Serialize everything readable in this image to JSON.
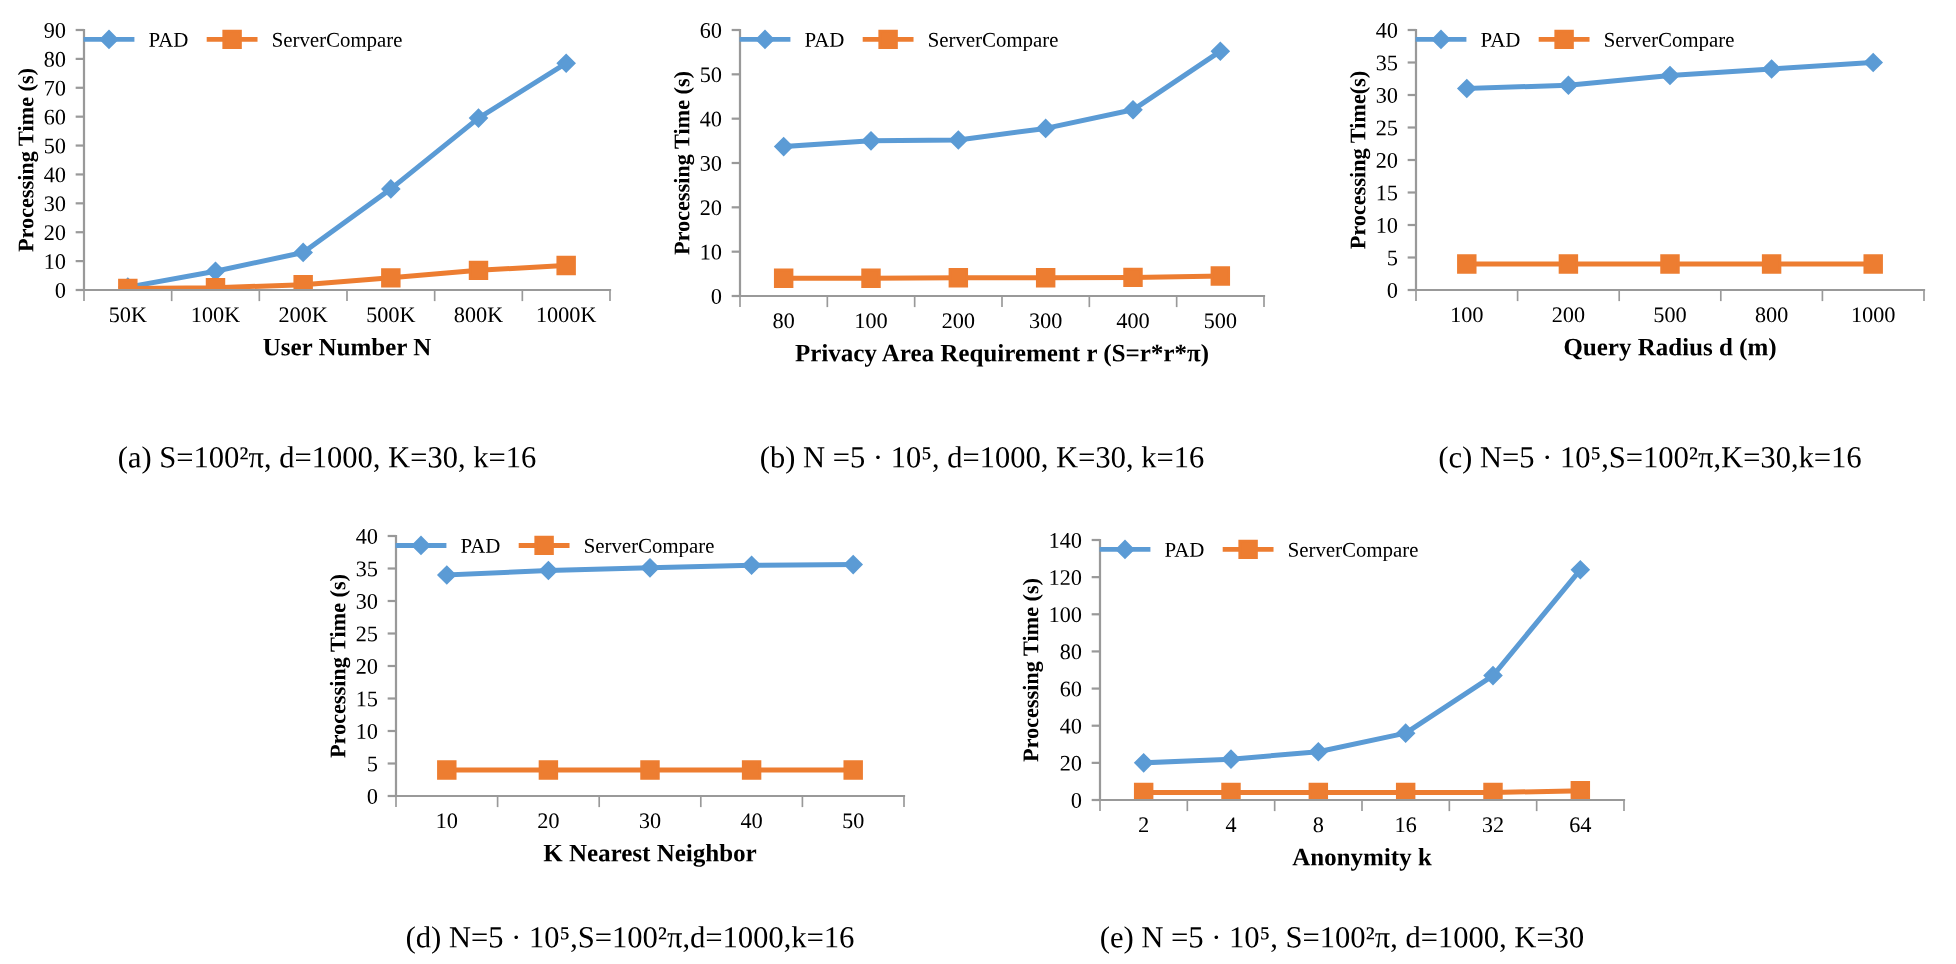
{
  "chart_data": [
    {
      "type": "line",
      "xlabel": "User Number N",
      "ylabel": "Processing Time (s)",
      "categories": [
        "50K",
        "100K",
        "200K",
        "500K",
        "800K",
        "1000K"
      ],
      "ylim": [
        0,
        90
      ],
      "yticks": [
        0,
        10,
        20,
        30,
        40,
        50,
        60,
        70,
        80,
        90
      ],
      "legend": "top left",
      "grid": false,
      "annotations": [
        "(a) S=100²π, d=1000, K=30, k=16"
      ],
      "series": [
        {
          "name": "PAD",
          "color": "#5b9bd5",
          "marker": "diamond",
          "values": [
            1,
            6.5,
            13,
            35,
            59.5,
            78.5
          ]
        },
        {
          "name": "ServerCompare",
          "color": "#ed7d31",
          "marker": "square",
          "values": [
            0.5,
            0.8,
            1.8,
            4.2,
            6.8,
            8.5
          ]
        }
      ]
    },
    {
      "type": "line",
      "xlabel": "Privacy Area Requirement r (S=r*r*π)",
      "ylabel": "Processing Time (s)",
      "categories": [
        "80",
        "100",
        "200",
        "300",
        "400",
        "500"
      ],
      "ylim": [
        0,
        60
      ],
      "yticks": [
        0,
        10,
        20,
        30,
        40,
        50,
        60
      ],
      "legend": "top left",
      "grid": false,
      "annotations": [
        "(b) N =5 · 10⁵, d=1000, K=30, k=16"
      ],
      "series": [
        {
          "name": "PAD",
          "color": "#5b9bd5",
          "marker": "diamond",
          "values": [
            33.7,
            35,
            35.2,
            37.8,
            42,
            55.2
          ]
        },
        {
          "name": "ServerCompare",
          "color": "#ed7d31",
          "marker": "square",
          "values": [
            4,
            4,
            4.1,
            4.1,
            4.2,
            4.5
          ]
        }
      ]
    },
    {
      "type": "line",
      "xlabel": "Query Radius d (m)",
      "ylabel": "Processing Time(s)",
      "categories": [
        "100",
        "200",
        "500",
        "800",
        "1000"
      ],
      "ylim": [
        0,
        40
      ],
      "yticks": [
        0,
        5,
        10,
        15,
        20,
        25,
        30,
        35,
        40
      ],
      "legend": "top left",
      "grid": false,
      "annotations": [
        "(c) N=5 · 10⁵,S=100²π,K=30,k=16"
      ],
      "series": [
        {
          "name": "PAD",
          "color": "#5b9bd5",
          "marker": "diamond",
          "values": [
            31,
            31.5,
            33,
            34,
            35
          ]
        },
        {
          "name": "ServerCompare",
          "color": "#ed7d31",
          "marker": "square",
          "values": [
            4,
            4,
            4,
            4,
            4
          ]
        }
      ]
    },
    {
      "type": "line",
      "xlabel": "K Nearest Neighbor",
      "ylabel": "Processing Time (s)",
      "categories": [
        "10",
        "20",
        "30",
        "40",
        "50"
      ],
      "ylim": [
        0,
        40
      ],
      "yticks": [
        0,
        5,
        10,
        15,
        20,
        25,
        30,
        35,
        40
      ],
      "legend": "top left",
      "grid": false,
      "annotations": [
        "(d) N=5 · 10⁵,S=100²π,d=1000,k=16"
      ],
      "series": [
        {
          "name": "PAD",
          "color": "#5b9bd5",
          "marker": "diamond",
          "values": [
            34,
            34.7,
            35.1,
            35.5,
            35.6
          ]
        },
        {
          "name": "ServerCompare",
          "color": "#ed7d31",
          "marker": "square",
          "values": [
            4,
            4,
            4,
            4,
            4
          ]
        }
      ]
    },
    {
      "type": "line",
      "xlabel": "Anonymity k",
      "ylabel": "Processing Time (s)",
      "categories": [
        "2",
        "4",
        "8",
        "16",
        "32",
        "64"
      ],
      "ylim": [
        0,
        140
      ],
      "yticks": [
        0,
        20,
        40,
        60,
        80,
        100,
        120,
        140
      ],
      "legend": "top left",
      "grid": false,
      "annotations": [
        "(e) N =5 · 10⁵, S=100²π, d=1000, K=30"
      ],
      "series": [
        {
          "name": "PAD",
          "color": "#5b9bd5",
          "marker": "diamond",
          "values": [
            20,
            22,
            26,
            36,
            67,
            124
          ]
        },
        {
          "name": "ServerCompare",
          "color": "#ed7d31",
          "marker": "square",
          "values": [
            4,
            4,
            4,
            4,
            4,
            5
          ]
        }
      ]
    }
  ]
}
